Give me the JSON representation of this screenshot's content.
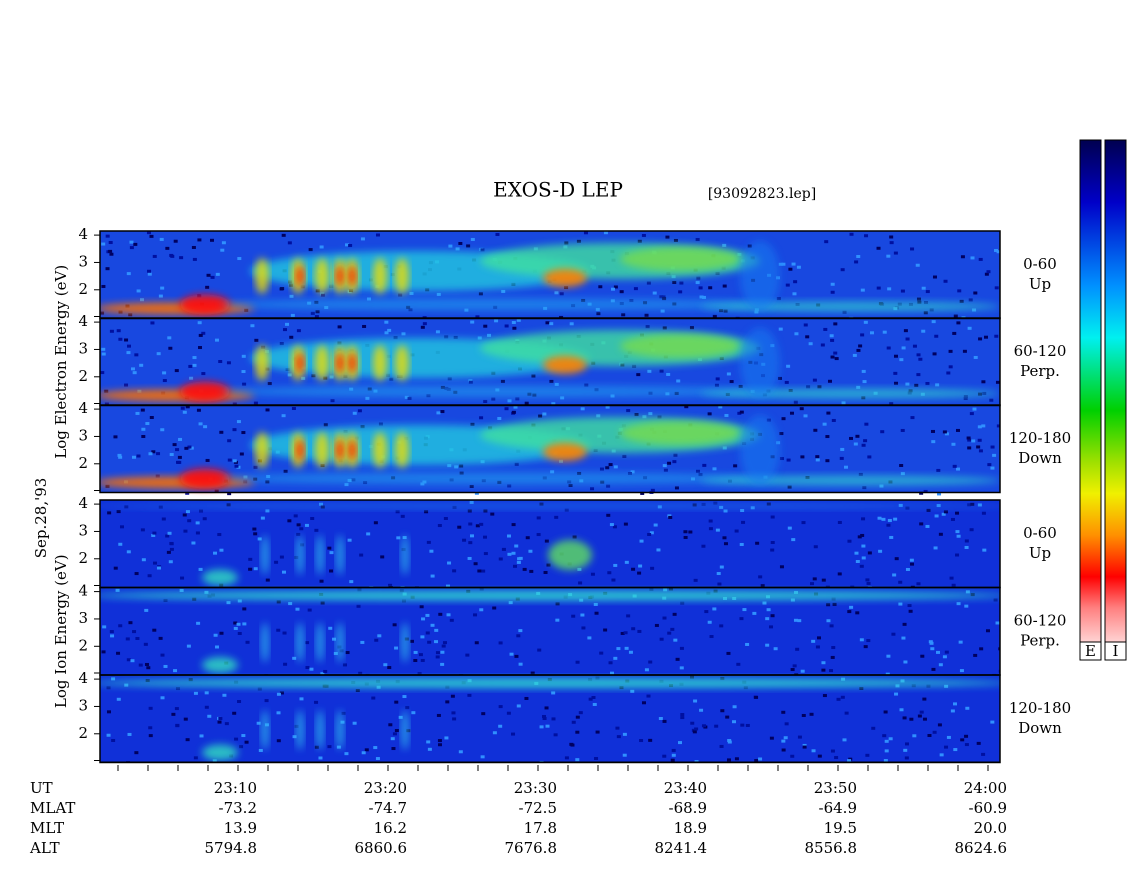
{
  "title": "EXOS-D LEP",
  "file": "[93092823.lep]",
  "date": "Sep.28,'93",
  "ylim": [
    0.95,
    4.15
  ],
  "yticks": [
    2,
    3,
    4
  ],
  "groups": [
    {
      "label": "Log Electron Energy (eV)",
      "panels": [
        {
          "angle": "0-60",
          "dir": "Up"
        },
        {
          "angle": "60-120",
          "dir": "Perp."
        },
        {
          "angle": "120-180",
          "dir": "Down"
        }
      ]
    },
    {
      "label": "Log Ion Energy (eV)",
      "panels": [
        {
          "angle": "0-60",
          "dir": "Up"
        },
        {
          "angle": "60-120",
          "dir": "Perp."
        },
        {
          "angle": "120-180",
          "dir": "Down"
        }
      ]
    }
  ],
  "time_axis": {
    "rows": [
      {
        "name": "UT",
        "values": [
          "23:10",
          "23:20",
          "23:30",
          "23:40",
          "23:50",
          "24:00"
        ]
      },
      {
        "name": "MLAT",
        "values": [
          "-73.2",
          "-74.7",
          "-72.5",
          "-68.9",
          "-64.9",
          "-60.9"
        ]
      },
      {
        "name": "MLT",
        "values": [
          "13.9",
          "16.2",
          "17.8",
          "18.9",
          "19.5",
          "20.0"
        ]
      },
      {
        "name": "ALT",
        "values": [
          "5794.8",
          "6860.6",
          "7676.8",
          "8241.4",
          "8556.8",
          "8624.6"
        ]
      }
    ]
  },
  "colorbars": [
    "E",
    "I"
  ]
}
